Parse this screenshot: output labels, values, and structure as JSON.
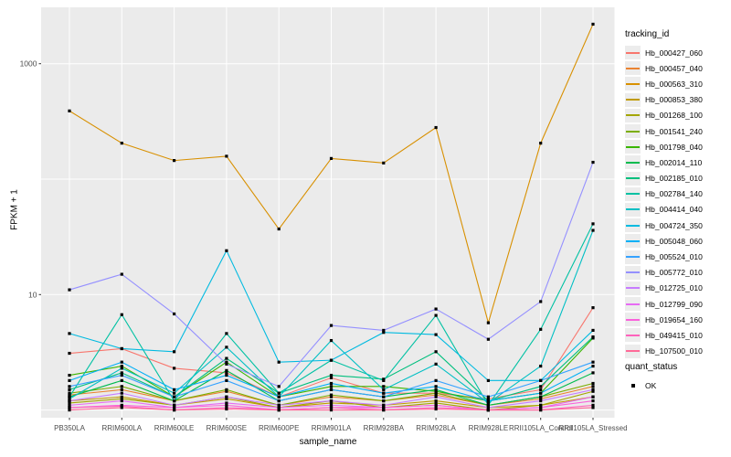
{
  "figure": {
    "panel_background": "#ebebeb",
    "gridline_color": "#ffffff",
    "axis_text_color": "#4d4d4d",
    "tick_mark_color": "#333333",
    "point_color": "#000000"
  },
  "chart_data": {
    "type": "line",
    "title": "",
    "xlabel": "sample_name",
    "ylabel": "FPKM + 1",
    "y_scale": "log10",
    "ylim": [
      0.86,
      3100
    ],
    "grid": true,
    "legend_position": "right",
    "y_ticks": [
      {
        "value": 10,
        "label": "10"
      },
      {
        "value": 1000,
        "label": "1000"
      }
    ],
    "y_gridlines": [
      1,
      10,
      100,
      1000
    ],
    "categories": [
      "PB350LA",
      "RRIM600LA",
      "RRIM600LE",
      "RRIM600SE",
      "RRIM600PE",
      "RRIM901LA",
      "RRIM928BA",
      "RRIM928LA",
      "RRIM928LE",
      "RRII105LA_Control",
      "RRII105LA_Stressed"
    ],
    "series": [
      {
        "name": "Hb_000427_060",
        "color": "#F8766D",
        "values": [
          3.1,
          3.4,
          2.3,
          2.1,
          1.3,
          1.9,
          1.4,
          1.4,
          1.25,
          1.5,
          7.7
        ]
      },
      {
        "name": "Hb_000457_040",
        "color": "#EA8331",
        "values": [
          1.35,
          1.5,
          1.2,
          1.45,
          1.1,
          1.3,
          1.2,
          1.35,
          1.1,
          1.25,
          1.6
        ]
      },
      {
        "name": "Hb_000563_310",
        "color": "#D89000",
        "values": [
          390,
          205,
          145,
          158,
          37,
          151,
          138,
          280,
          5.7,
          205,
          2200
        ]
      },
      {
        "name": "Hb_000853_380",
        "color": "#C09B00",
        "values": [
          1.2,
          1.3,
          1.1,
          1.25,
          1.05,
          1.15,
          1.1,
          1.2,
          1.05,
          1.1,
          1.3
        ]
      },
      {
        "name": "Hb_001268_100",
        "color": "#A3A500",
        "values": [
          1.15,
          1.25,
          1.1,
          1.3,
          1.05,
          1.2,
          1.05,
          1.15,
          1.0,
          1.1,
          1.45
        ]
      },
      {
        "name": "Hb_001541_240",
        "color": "#7CAE00",
        "values": [
          1.4,
          1.6,
          1.2,
          1.5,
          1.1,
          1.35,
          1.2,
          1.4,
          1.1,
          1.3,
          1.7
        ]
      },
      {
        "name": "Hb_001798_040",
        "color": "#39B600",
        "values": [
          2.0,
          2.4,
          1.3,
          2.6,
          1.3,
          1.6,
          1.6,
          1.45,
          1.2,
          1.4,
          4.2
        ]
      },
      {
        "name": "Hb_002014_110",
        "color": "#00BB4E",
        "values": [
          1.3,
          1.8,
          1.2,
          2.2,
          1.2,
          1.5,
          1.3,
          1.5,
          1.1,
          1.3,
          2.1
        ]
      },
      {
        "name": "Hb_002185_010",
        "color": "#00BF7D",
        "values": [
          1.5,
          2.1,
          1.3,
          2.8,
          1.4,
          2.0,
          1.85,
          3.2,
          1.2,
          1.6,
          4.3
        ]
      },
      {
        "name": "Hb_002784_140",
        "color": "#00C1A3",
        "values": [
          1.3,
          6.7,
          1.2,
          4.6,
          1.4,
          2.7,
          1.8,
          6.6,
          1.1,
          5.0,
          41
        ]
      },
      {
        "name": "Hb_004414_040",
        "color": "#00BFC4",
        "values": [
          1.25,
          2.3,
          1.4,
          3.5,
          1.3,
          4.0,
          1.5,
          2.5,
          1.15,
          2.4,
          36
        ]
      },
      {
        "name": "Hb_004724_350",
        "color": "#00BAE0",
        "values": [
          4.6,
          3.4,
          3.2,
          24,
          2.6,
          2.7,
          4.7,
          4.5,
          1.8,
          1.8,
          4.9
        ]
      },
      {
        "name": "Hb_005048_060",
        "color": "#00B0F6",
        "values": [
          1.8,
          2.6,
          1.5,
          2.0,
          1.3,
          1.7,
          1.4,
          1.6,
          1.2,
          1.4,
          2.4
        ]
      },
      {
        "name": "Hb_005524_010",
        "color": "#35A2FF",
        "values": [
          1.6,
          2.0,
          1.3,
          1.8,
          1.2,
          1.5,
          1.3,
          1.8,
          1.3,
          1.8,
          2.6
        ]
      },
      {
        "name": "Hb_005772_010",
        "color": "#9590FF",
        "values": [
          11,
          15,
          6.8,
          2.5,
          1.6,
          5.4,
          4.9,
          7.5,
          4.1,
          8.7,
          140
        ]
      },
      {
        "name": "Hb_012725_010",
        "color": "#C77CFF",
        "values": [
          1.2,
          1.4,
          1.1,
          1.3,
          1.1,
          1.2,
          1.1,
          1.3,
          1.05,
          1.2,
          1.5
        ]
      },
      {
        "name": "Hb_012799_090",
        "color": "#E76BF3",
        "values": [
          1.1,
          1.2,
          1.05,
          1.15,
          1.05,
          1.1,
          1.05,
          1.1,
          1.0,
          1.05,
          1.3
        ]
      },
      {
        "name": "Hb_019654_160",
        "color": "#FA62DB",
        "values": [
          1.05,
          1.1,
          1.05,
          1.1,
          1.0,
          1.05,
          1.05,
          1.1,
          1.0,
          1.05,
          1.2
        ]
      },
      {
        "name": "Hb_049415_010",
        "color": "#FF62BC",
        "values": [
          1.05,
          1.08,
          1.0,
          1.05,
          1.0,
          1.05,
          1.0,
          1.05,
          1.0,
          1.0,
          1.1
        ]
      },
      {
        "name": "Hb_107500_010",
        "color": "#FF6A98",
        "values": [
          1.0,
          1.05,
          1.0,
          1.02,
          1.0,
          1.0,
          1.0,
          1.02,
          1.0,
          1.0,
          1.05
        ]
      }
    ],
    "legend": {
      "tracking_title": "tracking_id",
      "quant_title": "quant_status",
      "quant_items": [
        {
          "label": "OK",
          "shape": "filled-square",
          "color": "#000000"
        }
      ]
    }
  }
}
